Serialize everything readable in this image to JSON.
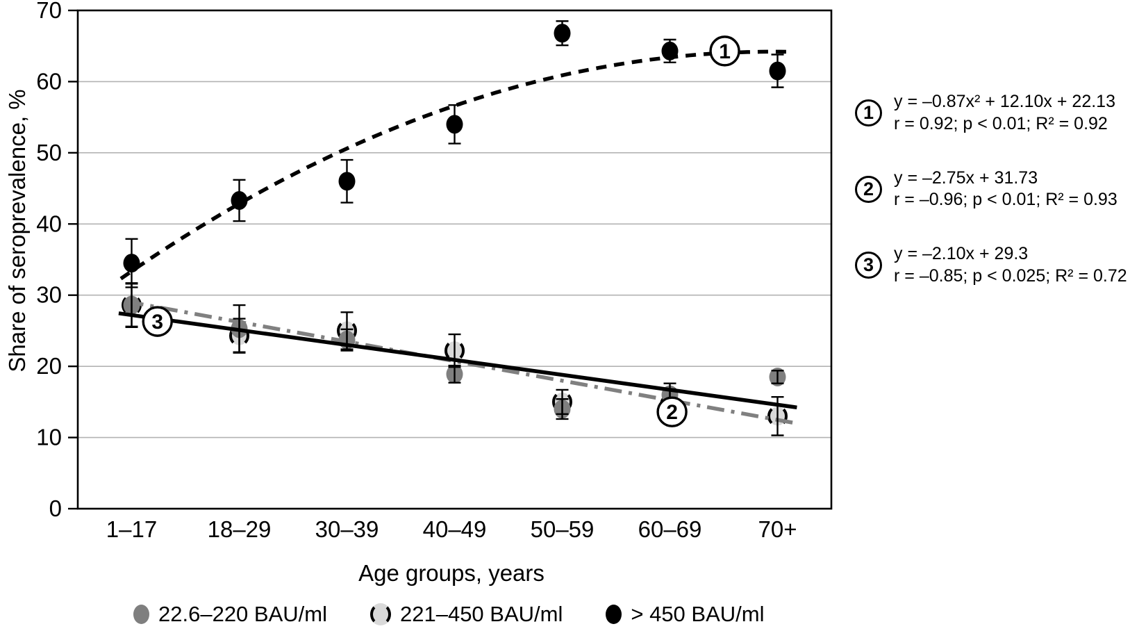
{
  "figure": {
    "y_axis_label": "Share of seroprevalence, %",
    "x_axis_label": "Age groups, years"
  },
  "legend": {
    "items": [
      {
        "label": "22.6–220 BAU/ml",
        "marker": "gray-filled-dot"
      },
      {
        "label": "221–450 BAU/ml",
        "marker": "light-open-dot"
      },
      {
        "label": "> 450 BAU/ml",
        "marker": "black-filled-dot"
      }
    ]
  },
  "equations": {
    "items": [
      {
        "id": "1",
        "equation": "y = –0.87x² + 12.10x + 22.13",
        "stats": "r = 0.92; p < 0.01; R² = 0.92"
      },
      {
        "id": "2",
        "equation": "y = –2.75x + 31.73",
        "stats": "r = –0.96; p < 0.01; R² = 0.93"
      },
      {
        "id": "3",
        "equation": "y = –2.10x + 29.3",
        "stats": "r = –0.85; p < 0.025; R² = 0.72"
      }
    ]
  },
  "colors": {
    "gray_marker": "#7f7f7f",
    "light_marker": "#d9d9d9",
    "black_marker": "#000000",
    "trend_gray": "#808080",
    "gridline": "#b3b3b3"
  },
  "chart_data": {
    "type": "scatter",
    "title": "",
    "xlabel": "Age groups, years",
    "ylabel": "Share of seroprevalence, %",
    "categories": [
      "1–17",
      "18–29",
      "30–39",
      "40–49",
      "50–59",
      "60–69",
      "70+"
    ],
    "ylim": [
      0,
      70
    ],
    "y_ticks": [
      0,
      10,
      20,
      30,
      40,
      50,
      60,
      70
    ],
    "grid": "horizontal",
    "legend_position": "bottom",
    "series": [
      {
        "name": "221–450 BAU/ml",
        "marker": "light-open",
        "values": [
          28.6,
          24.3,
          25.0,
          22.2,
          15.0,
          14.6,
          13.0
        ],
        "errors": [
          3.0,
          2.4,
          2.6,
          2.3,
          1.7,
          2.2,
          2.7
        ],
        "trend": {
          "label": "2",
          "type": "linear",
          "equation": "y = –2.75x + 31.73",
          "slope": -2.75,
          "intercept": 31.73,
          "style": "dash-dot",
          "color": "#808080",
          "x_start": 0.95,
          "x_end": 7.16,
          "label_pos": {
            "x": 6.02,
            "y": 13.6
          }
        }
      },
      {
        "name": "22.6–220 BAU/ml",
        "marker": "gray-filled",
        "values": [
          28.6,
          25.3,
          23.7,
          18.9,
          14.0,
          16.0,
          18.5
        ],
        "errors": [
          3.1,
          3.3,
          1.5,
          1.2,
          1.4,
          1.6,
          0.9
        ],
        "trend": {
          "label": "3",
          "type": "linear",
          "equation": "y = –2.10x + 29.3",
          "slope": -2.1,
          "intercept": 29.3,
          "style": "solid",
          "color": "#000000",
          "x_start": 0.88,
          "x_end": 7.18,
          "label_pos": {
            "x": 1.24,
            "y": 26.3
          }
        }
      },
      {
        "name": "> 450 BAU/ml",
        "marker": "black-filled",
        "values": [
          34.5,
          43.3,
          46.0,
          54.0,
          66.8,
          64.3,
          61.5
        ],
        "errors": [
          3.4,
          2.9,
          3.0,
          2.7,
          1.7,
          1.6,
          2.3
        ],
        "trend": {
          "label": "1",
          "type": "quadratic",
          "equation": "y = –0.87x² + 12.10x + 22.13",
          "a": -0.87,
          "b": 12.1,
          "c": 22.13,
          "style": "dashed",
          "color": "#000000",
          "x_start": 0.9,
          "x_end": 7.12,
          "label_pos": {
            "x": 6.51,
            "y": 64.3
          }
        }
      }
    ]
  }
}
